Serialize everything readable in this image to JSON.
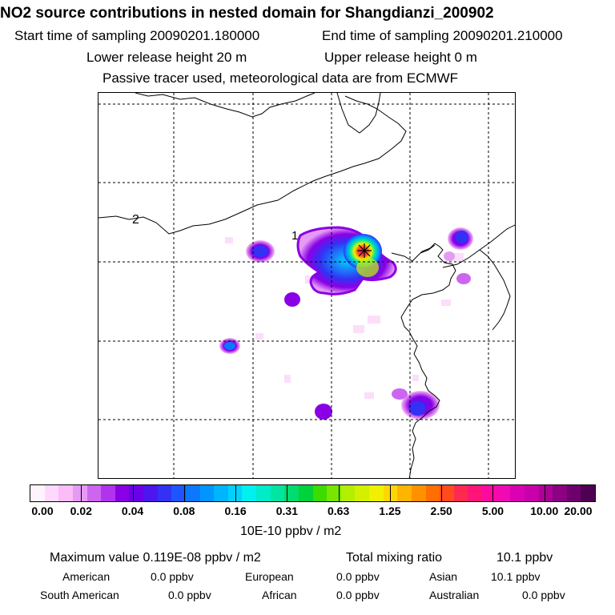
{
  "header": {
    "title": "NO2 source contributions in nested domain for Shangdianzi_200902",
    "start_time": "Start time of sampling 20090201.180000",
    "end_time": "End time of sampling 20090201.210000",
    "lower_release": "Lower release height   20 m",
    "upper_release": "Upper release height    0 m",
    "tracer_note": "Passive tracer used, meteorological data are from ECMWF"
  },
  "map": {
    "region_labels": [
      "2",
      "1"
    ],
    "receptor_marker": "receptor-star",
    "background": "#ffffff"
  },
  "colorbar": {
    "tick_labels": [
      "0.00",
      "0.02",
      "0.04",
      "0.08",
      "0.16",
      "0.31",
      "0.63",
      "1.25",
      "2.50",
      "5.00",
      "10.00",
      "20.00"
    ],
    "colors": [
      "#fff4fe",
      "#ffd8ff",
      "#fbbcf7",
      "#e59af4",
      "#cc66f0",
      "#b033ee",
      "#8a00e6",
      "#6a00e8",
      "#4d16ee",
      "#3232f5",
      "#1e55ff",
      "#0a78ff",
      "#0096ff",
      "#00b4ff",
      "#00d2ff",
      "#00f0f0",
      "#00ebc8",
      "#00e6a0",
      "#00dc6e",
      "#00d23c",
      "#3cdc00",
      "#78e600",
      "#b4ee00",
      "#d2f000",
      "#f0f000",
      "#ffd700",
      "#ffb400",
      "#ff9100",
      "#ff6e00",
      "#ff4b1e",
      "#ff2850",
      "#ff1478",
      "#ff0aa0",
      "#f00ab4",
      "#dc00b4",
      "#c800aa",
      "#aa0096",
      "#8c0082",
      "#6e006e",
      "#500050"
    ],
    "units": "10E-10 ppbv / m2"
  },
  "stats": {
    "max_label": "Maximum value  0.119E-08 ppbv / m2",
    "total_label": "Total mixing ratio",
    "total_value": "10.1 ppbv",
    "sources": [
      {
        "name": "American",
        "value": "0.0 ppbv"
      },
      {
        "name": "European",
        "value": "0.0 ppbv"
      },
      {
        "name": "Asian",
        "value": "10.1 ppbv"
      },
      {
        "name": "South American",
        "value": "0.0 ppbv"
      },
      {
        "name": "African",
        "value": "0.0 ppbv"
      },
      {
        "name": "Australian",
        "value": "0.0 ppbv"
      }
    ]
  }
}
